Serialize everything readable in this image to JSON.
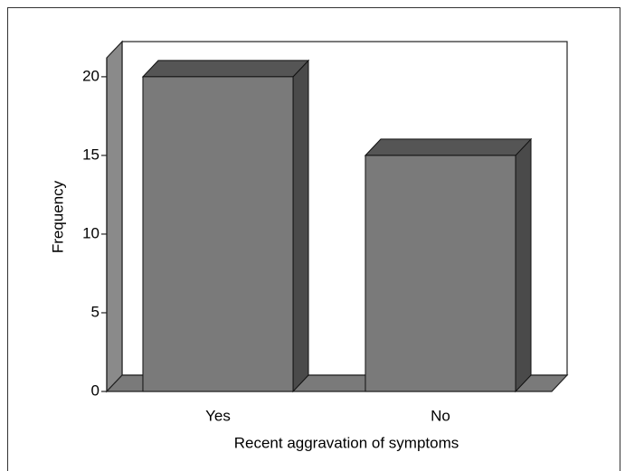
{
  "chart_data": {
    "type": "bar3d",
    "x_label": "Recent aggravation of symptoms",
    "y_label": "Frequency",
    "categories": [
      "Yes",
      "No"
    ],
    "values": [
      20,
      15
    ],
    "color": "#7a7a7a",
    "ylim": [
      0,
      21.2
    ],
    "yticks": [
      0,
      5,
      10,
      15,
      20
    ]
  }
}
